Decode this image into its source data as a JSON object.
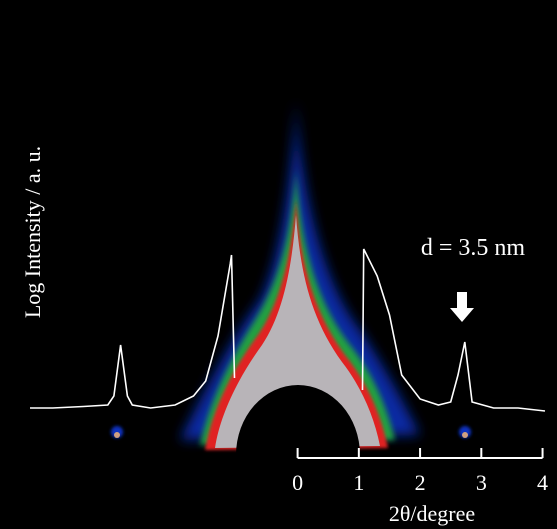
{
  "chart_data": {
    "type": "line",
    "y_label": "Log Intensity / a. u.",
    "x_label": "2θ/degree",
    "annotation": "d = 3.5 nm",
    "xlim": [
      -4.37,
      4.04
    ],
    "xticks": [
      0,
      1,
      2,
      3,
      4
    ],
    "ylim": [
      0,
      100
    ],
    "series": [
      {
        "color": "#ffffff",
        "x": [
          -4.37,
          -4.0,
          -3.5,
          -3.1,
          -3.0,
          -2.89,
          -2.78,
          -2.7,
          -2.4,
          -2.0,
          -1.7,
          -1.5,
          -1.3,
          -1.1,
          -1.08,
          -1.03,
          0,
          1.06,
          1.08,
          1.3,
          1.5,
          1.7,
          2.0,
          2.3,
          2.5,
          2.62,
          2.73,
          2.85,
          3.2,
          3.6,
          4.04
        ],
        "values": [
          4,
          4,
          4.5,
          5,
          8,
          25,
          8,
          5,
          4,
          5,
          8,
          13,
          28,
          52,
          55,
          14,
          null,
          10,
          57,
          48,
          35,
          15,
          7,
          5,
          6,
          15,
          26,
          6,
          4,
          4,
          3
        ]
      }
    ]
  }
}
